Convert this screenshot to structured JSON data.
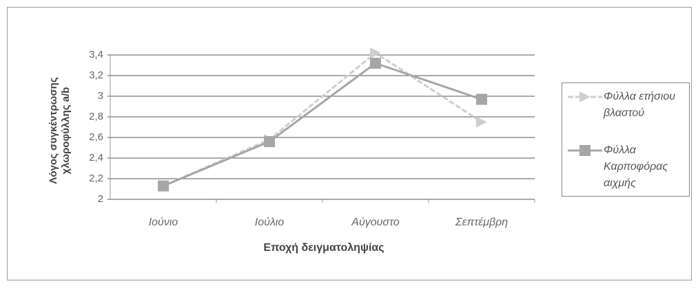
{
  "chart_data": {
    "type": "line",
    "x_label": "Εποχή δειγματοληψίας",
    "y_label": "Λόγος συγκέντρωσης χλωροφύλλης a/b",
    "categories": [
      "Ιούνιο",
      "Ιούλιο",
      "Αύγουστο",
      "Σεπτέμβρη"
    ],
    "series": [
      {
        "name": "Φύλλα ετήσιου βλαστού",
        "color": "#cfcfcf",
        "values": [
          2.13,
          2.58,
          3.42,
          2.75
        ]
      },
      {
        "name": "Φύλλα Καρποφόρας αιχμής",
        "color": "#a6a6a6",
        "values": [
          2.13,
          2.56,
          3.32,
          2.97
        ]
      }
    ],
    "ylim": [
      2,
      3.4
    ],
    "yticks": [
      2,
      {
        "value": 2.2,
        "label": "2,2"
      },
      {
        "value": 2.4,
        "label": "2,4"
      },
      {
        "value": 2.6,
        "label": "2,6"
      },
      {
        "value": 2.8,
        "label": "2,8"
      },
      3,
      {
        "value": 3.2,
        "label": "3,2"
      },
      {
        "value": 3.4,
        "label": "3,4"
      }
    ],
    "grid": true,
    "legend": "right"
  }
}
